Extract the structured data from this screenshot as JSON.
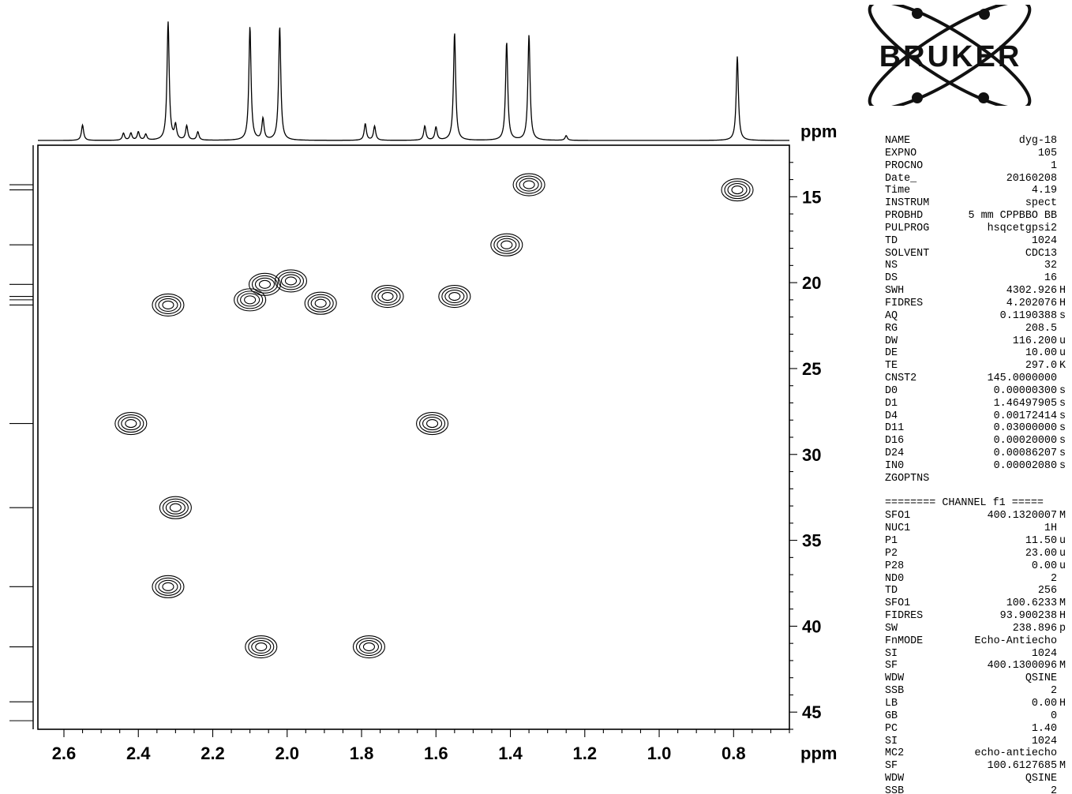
{
  "logo": {
    "text": "BRUKER"
  },
  "chart_data": {
    "type": "heatmap",
    "title": "",
    "xlabel": "ppm",
    "ylabel": "ppm",
    "xlim": [
      2.67,
      0.65
    ],
    "ylim": [
      12.0,
      46.0
    ],
    "x_ticks": [
      "2.6",
      "2.4",
      "2.2",
      "2.0",
      "1.8",
      "1.6",
      "1.4",
      "1.2",
      "1.0",
      "0.8"
    ],
    "y_ticks": [
      "15",
      "20",
      "25",
      "30",
      "35",
      "40",
      "45"
    ],
    "proton_peaks": [
      {
        "x": 2.55,
        "h": 0.13
      },
      {
        "x": 2.44,
        "h": 0.06
      },
      {
        "x": 2.42,
        "h": 0.06
      },
      {
        "x": 2.4,
        "h": 0.07
      },
      {
        "x": 2.38,
        "h": 0.05
      },
      {
        "x": 2.32,
        "h": 1.0
      },
      {
        "x": 2.3,
        "h": 0.12
      },
      {
        "x": 2.27,
        "h": 0.12
      },
      {
        "x": 2.24,
        "h": 0.07
      },
      {
        "x": 2.1,
        "h": 0.96
      },
      {
        "x": 2.065,
        "h": 0.18
      },
      {
        "x": 2.02,
        "h": 0.96
      },
      {
        "x": 1.79,
        "h": 0.14
      },
      {
        "x": 1.765,
        "h": 0.12
      },
      {
        "x": 1.63,
        "h": 0.12
      },
      {
        "x": 1.6,
        "h": 0.11
      },
      {
        "x": 1.55,
        "h": 0.91
      },
      {
        "x": 1.41,
        "h": 0.83
      },
      {
        "x": 1.35,
        "h": 0.89
      },
      {
        "x": 1.25,
        "h": 0.04
      },
      {
        "x": 0.79,
        "h": 0.71
      }
    ],
    "cross_peaks": [
      {
        "x": 1.35,
        "y": 14.3
      },
      {
        "x": 0.79,
        "y": 14.6
      },
      {
        "x": 1.41,
        "y": 17.8
      },
      {
        "x": 2.32,
        "y": 21.3
      },
      {
        "x": 2.1,
        "y": 21.0
      },
      {
        "x": 2.06,
        "y": 20.1
      },
      {
        "x": 1.99,
        "y": 19.9
      },
      {
        "x": 1.55,
        "y": 20.8
      },
      {
        "x": 1.91,
        "y": 21.2
      },
      {
        "x": 1.73,
        "y": 20.8
      },
      {
        "x": 2.42,
        "y": 28.2
      },
      {
        "x": 1.61,
        "y": 28.2
      },
      {
        "x": 2.3,
        "y": 33.1
      },
      {
        "x": 2.32,
        "y": 37.7
      },
      {
        "x": 2.07,
        "y": 41.2
      },
      {
        "x": 1.78,
        "y": 41.2
      }
    ],
    "carbon_peaks": [
      14.3,
      14.6,
      17.8,
      20.1,
      20.8,
      21.0,
      21.3,
      28.2,
      33.1,
      37.7,
      41.2,
      44.4,
      45.5
    ]
  },
  "parameters": {
    "acquisition": [
      {
        "key": "NAME",
        "value": "dyg-18",
        "unit": ""
      },
      {
        "key": "EXPNO",
        "value": "105",
        "unit": ""
      },
      {
        "key": "PROCNO",
        "value": "1",
        "unit": ""
      },
      {
        "key": "Date_",
        "value": "20160208",
        "unit": ""
      },
      {
        "key": "Time",
        "value": "4.19",
        "unit": ""
      },
      {
        "key": "INSTRUM",
        "value": "spect",
        "unit": ""
      },
      {
        "key": "PROBHD",
        "value": "5 mm CPPBBO BB",
        "unit": ""
      },
      {
        "key": "PULPROG",
        "value": "hsqcetgpsi2",
        "unit": ""
      },
      {
        "key": "TD",
        "value": "1024",
        "unit": ""
      },
      {
        "key": "SOLVENT",
        "value": "CDC13",
        "unit": ""
      },
      {
        "key": "NS",
        "value": "32",
        "unit": ""
      },
      {
        "key": "DS",
        "value": "16",
        "unit": ""
      },
      {
        "key": "SWH",
        "value": "4302.926",
        "unit": "H"
      },
      {
        "key": "FIDRES",
        "value": "4.202076",
        "unit": "H"
      },
      {
        "key": "AQ",
        "value": "0.1190388",
        "unit": "s"
      },
      {
        "key": "RG",
        "value": "208.5",
        "unit": ""
      },
      {
        "key": "DW",
        "value": "116.200",
        "unit": "u"
      },
      {
        "key": "DE",
        "value": "10.00",
        "unit": "u"
      },
      {
        "key": "TE",
        "value": "297.0",
        "unit": "K"
      },
      {
        "key": "CNST2",
        "value": "145.0000000",
        "unit": ""
      },
      {
        "key": "D0",
        "value": "0.00000300",
        "unit": "s"
      },
      {
        "key": "D1",
        "value": "1.46497905",
        "unit": "s"
      },
      {
        "key": "D4",
        "value": "0.00172414",
        "unit": "s"
      },
      {
        "key": "D11",
        "value": "0.03000000",
        "unit": "s"
      },
      {
        "key": "D16",
        "value": "0.00020000",
        "unit": "s"
      },
      {
        "key": "D24",
        "value": "0.00086207",
        "unit": "s"
      },
      {
        "key": "IN0",
        "value": "0.00002080",
        "unit": "s"
      },
      {
        "key": "ZGOPTNS",
        "value": "",
        "unit": ""
      }
    ],
    "channel_header": "======== CHANNEL f1 =====",
    "channel": [
      {
        "key": "SFO1",
        "value": "400.1320007",
        "unit": "M"
      },
      {
        "key": "NUC1",
        "value": "1H",
        "unit": ""
      },
      {
        "key": "P1",
        "value": "11.50",
        "unit": "u"
      },
      {
        "key": "P2",
        "value": "23.00",
        "unit": "u"
      },
      {
        "key": "P28",
        "value": "0.00",
        "unit": "u"
      },
      {
        "key": "ND0",
        "value": "2",
        "unit": ""
      },
      {
        "key": "TD",
        "value": "256",
        "unit": ""
      },
      {
        "key": "SFO1",
        "value": "100.6233",
        "unit": "M"
      },
      {
        "key": "FIDRES",
        "value": "93.900238",
        "unit": "H"
      },
      {
        "key": "SW",
        "value": "238.896",
        "unit": "p"
      },
      {
        "key": "FnMODE",
        "value": "Echo-Antiecho",
        "unit": ""
      },
      {
        "key": "SI",
        "value": "1024",
        "unit": ""
      },
      {
        "key": "SF",
        "value": "400.1300096",
        "unit": "M"
      },
      {
        "key": "WDW",
        "value": "QSINE",
        "unit": ""
      },
      {
        "key": "SSB",
        "value": "2",
        "unit": ""
      },
      {
        "key": "LB",
        "value": "0.00",
        "unit": "H"
      },
      {
        "key": "GB",
        "value": "0",
        "unit": ""
      },
      {
        "key": "PC",
        "value": "1.40",
        "unit": ""
      },
      {
        "key": "SI",
        "value": "1024",
        "unit": ""
      },
      {
        "key": "MC2",
        "value": "echo-antiecho",
        "unit": ""
      },
      {
        "key": "SF",
        "value": "100.6127685",
        "unit": "M"
      },
      {
        "key": "WDW",
        "value": "QSINE",
        "unit": ""
      },
      {
        "key": "SSB",
        "value": "2",
        "unit": ""
      }
    ]
  }
}
